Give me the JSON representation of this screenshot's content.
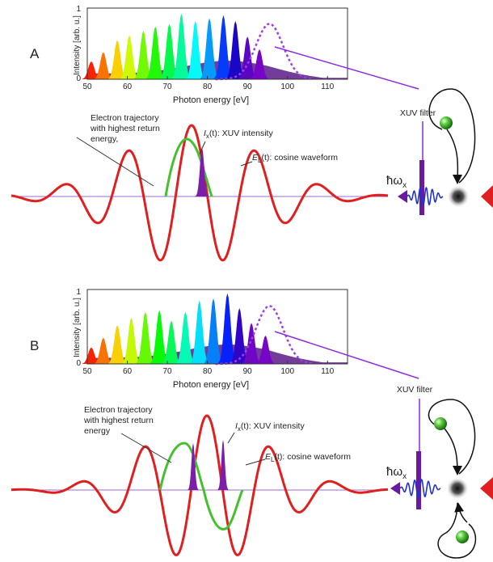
{
  "figure": {
    "panels": [
      {
        "letter": "A",
        "spectrum": {
          "ylabel": "Intensity [arb. u.]",
          "xlabel": "Photon energy [eV]",
          "ytick_top": "1",
          "ytick_bottom": "0",
          "xticks": [
            "50",
            "60",
            "70",
            "80",
            "90",
            "100",
            "110"
          ]
        },
        "annotations": {
          "trajectory_line1": "Electron trajectory",
          "trajectory_line2": "with highest return",
          "trajectory_line3": "energy,",
          "xuv_symbol": "I",
          "xuv_sub": "x",
          "xuv_text": "(t): XUV intensity",
          "field_symbol": "E",
          "field_sub": "L",
          "field_text": "(t): cosine waveform"
        },
        "filter_label": "XUV filter",
        "photon_symbol": "ħω",
        "photon_sub": "x"
      },
      {
        "letter": "B",
        "spectrum": {
          "ylabel": "Intensity [arb. u.]",
          "xlabel": "Photon energy [eV]",
          "ytick_top": "1",
          "ytick_bottom": "0",
          "xticks": [
            "50",
            "60",
            "70",
            "80",
            "90",
            "100",
            "110"
          ]
        },
        "annotations": {
          "trajectory_line1": "Electron trajectory",
          "trajectory_line2": "with highest return",
          "trajectory_line3": "energy",
          "xuv_symbol": "I",
          "xuv_sub": "x",
          "xuv_text": "(t): XUV intensity",
          "field_symbol": "E",
          "field_sub": "L",
          "field_text": "(t): cosine waveform"
        },
        "filter_label": "XUV filter",
        "photon_symbol": "ħω",
        "photon_sub": "x"
      }
    ],
    "colors": {
      "field": "#e02020",
      "trajectory": "#44c030",
      "xuv": "#7b1fa8",
      "filter_line": "#8a2be2",
      "arrow": "#e02020",
      "pulse_blue": "#2233cc"
    }
  },
  "chart_data": [
    {
      "type": "area",
      "xlabel": "Photon energy [eV]",
      "ylabel": "Intensity [arb. u.]",
      "xlim": [
        50,
        115
      ],
      "ylim": [
        0,
        1
      ],
      "harmonics": {
        "x": [
          51,
          54,
          57.5,
          60.5,
          64,
          67,
          70.5,
          73.5,
          77,
          80.5,
          84,
          87,
          90,
          93
        ],
        "y": [
          0.25,
          0.38,
          0.55,
          0.62,
          0.68,
          0.74,
          0.78,
          0.92,
          0.82,
          0.86,
          0.9,
          0.82,
          0.6,
          0.42
        ]
      },
      "filter_transmission": {
        "center": 95.5,
        "peak": 0.78
      }
    },
    {
      "type": "area",
      "xlabel": "Photon energy [eV]",
      "ylabel": "Intensity [arb. u.]",
      "xlim": [
        50,
        115
      ],
      "ylim": [
        0,
        1
      ],
      "harmonics": {
        "x": [
          51,
          54,
          57.5,
          61,
          64.5,
          68,
          71,
          74.5,
          78,
          81.5,
          85,
          88,
          91,
          94.5
        ],
        "y": [
          0.22,
          0.35,
          0.52,
          0.62,
          0.7,
          0.72,
          0.58,
          0.7,
          0.85,
          0.88,
          0.95,
          0.75,
          0.55,
          0.38
        ]
      },
      "filter_transmission": {
        "center": 95.5,
        "peak": 0.78
      }
    }
  ]
}
